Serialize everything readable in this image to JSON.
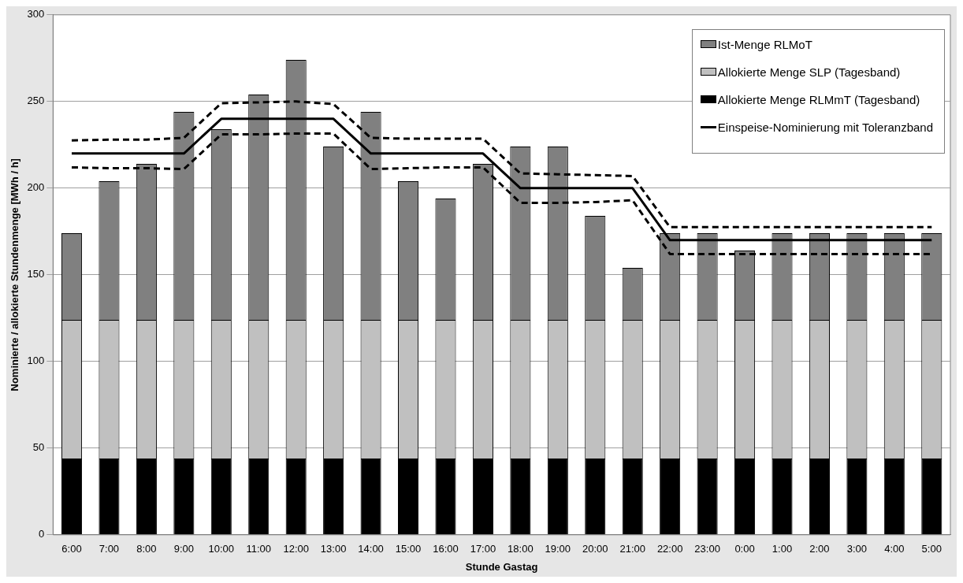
{
  "chart_data": {
    "type": "bar",
    "stacked": true,
    "xlabel": "Stunde Gastag",
    "ylabel": "Nominierte / allokierte Stundenmenge [MWh / h]",
    "categories": [
      "6:00",
      "7:00",
      "8:00",
      "9:00",
      "10:00",
      "11:00",
      "12:00",
      "13:00",
      "14:00",
      "15:00",
      "16:00",
      "17:00",
      "18:00",
      "19:00",
      "20:00",
      "21:00",
      "22:00",
      "23:00",
      "0:00",
      "1:00",
      "2:00",
      "3:00",
      "4:00",
      "5:00"
    ],
    "series": [
      {
        "name": "Allokierte Menge RLMmT (Tagesband)",
        "color": "#000000",
        "values": [
          44,
          44,
          44,
          44,
          44,
          44,
          44,
          44,
          44,
          44,
          44,
          44,
          44,
          44,
          44,
          44,
          44,
          44,
          44,
          44,
          44,
          44,
          44,
          44
        ]
      },
      {
        "name": "Allokierte Menge SLP (Tagesband)",
        "color": "#c0c0c0",
        "values": [
          80,
          80,
          80,
          80,
          80,
          80,
          80,
          80,
          80,
          80,
          80,
          80,
          80,
          80,
          80,
          80,
          80,
          80,
          80,
          80,
          80,
          80,
          80,
          80
        ]
      },
      {
        "name": "Ist-Menge RLMoT",
        "color": "#808080",
        "values": [
          50,
          80,
          90,
          120,
          110,
          130,
          150,
          100,
          120,
          80,
          70,
          90,
          100,
          100,
          60,
          30,
          50,
          50,
          40,
          50,
          50,
          50,
          50,
          50
        ]
      },
      {
        "name": "Einspeise-Nominierung mit Toleranzband",
        "type": "line",
        "color": "#000000",
        "line_style": "solid",
        "values": [
          220,
          220,
          220,
          220,
          240,
          240,
          240,
          240,
          220,
          220,
          220,
          220,
          200,
          200,
          200,
          200,
          170,
          170,
          170,
          170,
          170,
          170,
          170,
          170
        ]
      },
      {
        "type": "line",
        "color": "#000000",
        "line_style": "dashed",
        "values": [
          227.5,
          228,
          228,
          229,
          249,
          249.5,
          250,
          248.5,
          229,
          228.5,
          228.5,
          228.5,
          208.5,
          208,
          207.5,
          207,
          177.5,
          177.5,
          177.5,
          177.5,
          177.5,
          177.5,
          177.5,
          177.5
        ]
      },
      {
        "type": "line",
        "color": "#000000",
        "line_style": "dashed",
        "values": [
          212,
          211.5,
          211.5,
          211,
          231,
          231,
          231.5,
          231.5,
          211,
          211.5,
          212,
          212,
          191.5,
          191.5,
          192,
          193,
          162,
          162,
          162,
          162,
          162,
          162,
          162,
          162
        ]
      }
    ],
    "ylim": [
      0,
      300
    ],
    "yticks": [
      0,
      50,
      100,
      150,
      200,
      250,
      300
    ],
    "grid": "y",
    "legend": "top right",
    "marker": "none"
  }
}
